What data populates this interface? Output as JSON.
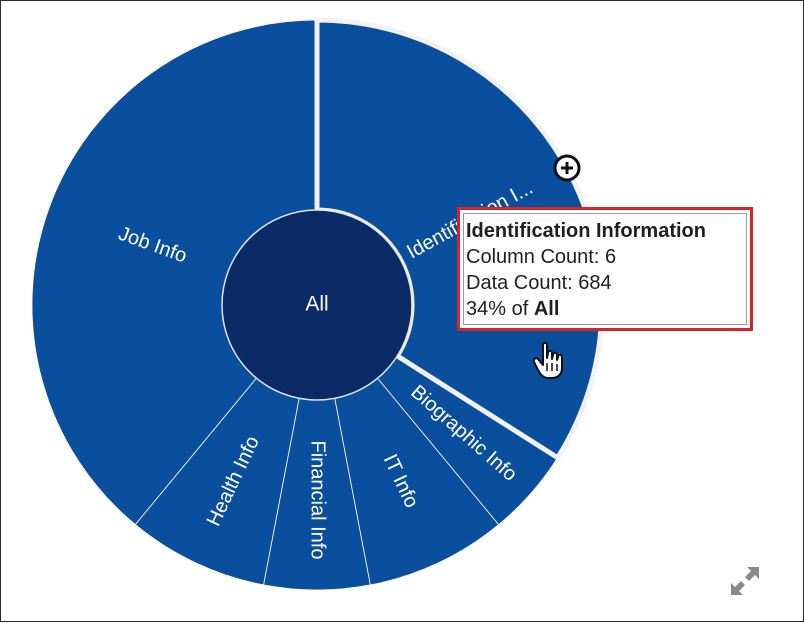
{
  "chart_data": {
    "type": "sunburst",
    "center": {
      "label": "All"
    },
    "segments": [
      {
        "label": "Identification I...",
        "full_name": "Identification Information",
        "percent": 34,
        "highlighted": true
      },
      {
        "label": "Biographic Info",
        "percent": 5
      },
      {
        "label": "IT Info",
        "percent": 8
      },
      {
        "label": "Financial Info",
        "percent": 6
      },
      {
        "label": "Health Info",
        "percent": 8
      },
      {
        "label": "Job Info",
        "percent": 39
      }
    ],
    "colors": {
      "segment": "#0a4f9e",
      "center": "#0b2a66",
      "separator": "#ffffff",
      "highlight_outline": "#f2f2f2"
    }
  },
  "tooltip": {
    "title": "Identification Information",
    "column_count_label": "Column Count: 6",
    "data_count_label": "Data Count: 684",
    "percent_text": "34% of ",
    "percent_of": "All",
    "border_color": "#d3262b"
  },
  "icons": {
    "zoom": "zoom-in-plus-icon",
    "cursor": "hand-pointer-icon",
    "expand": "expand-arrows-icon"
  }
}
